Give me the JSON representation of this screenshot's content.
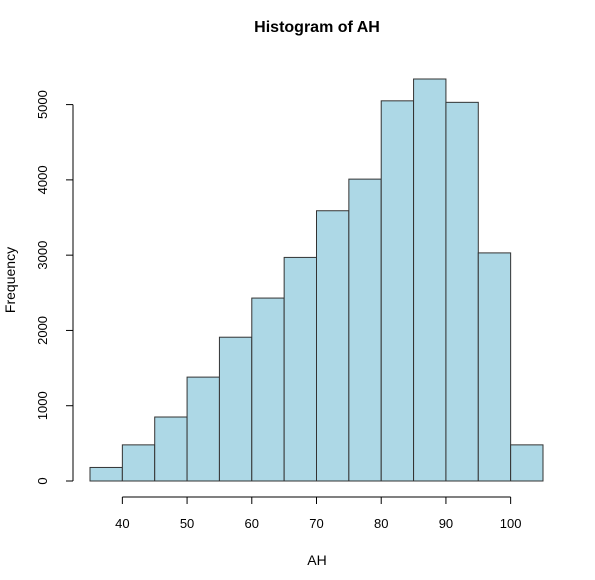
{
  "chart_data": {
    "type": "bar",
    "title": "Histogram of AH",
    "xlabel": "AH",
    "ylabel": "Frequency",
    "bin_edges": [
      35,
      40,
      45,
      50,
      55,
      60,
      65,
      70,
      75,
      80,
      85,
      90,
      95,
      100,
      105
    ],
    "values": [
      180,
      480,
      850,
      1380,
      1910,
      2430,
      2970,
      3590,
      4010,
      5050,
      5340,
      5030,
      3030,
      480
    ],
    "xlim": [
      35,
      105
    ],
    "ylim": [
      0,
      5340
    ],
    "x_ticks": [
      40,
      50,
      60,
      70,
      80,
      90,
      100
    ],
    "y_ticks": [
      0,
      1000,
      2000,
      3000,
      4000,
      5000
    ],
    "grid": false,
    "legend": "none",
    "bar_color": "#add8e6",
    "bar_edge_color": "#333333"
  }
}
